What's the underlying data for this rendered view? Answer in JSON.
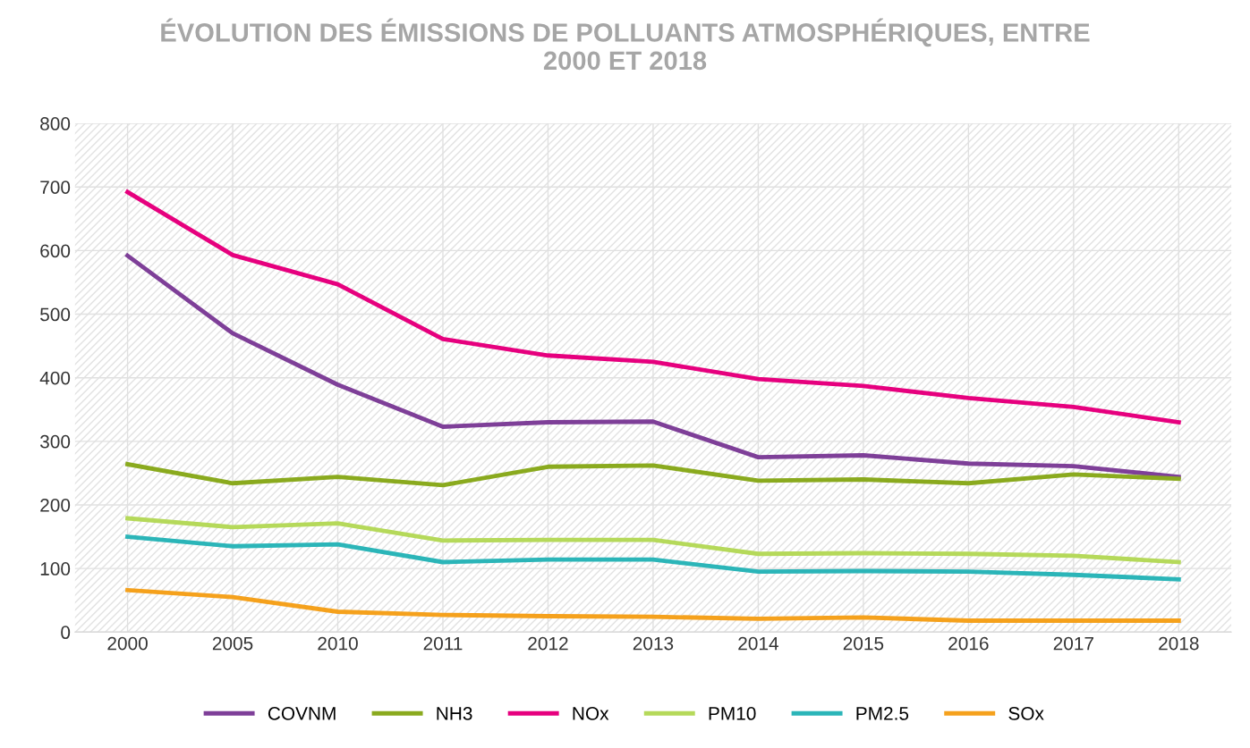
{
  "chart_data": {
    "type": "line",
    "title": "ÉVOLUTION DES ÉMISSIONS DE POLLUANTS ATMOSPHÉRIQUES, ENTRE\n2000 ET 2018",
    "categories": [
      "2000",
      "2005",
      "2010",
      "2011",
      "2012",
      "2013",
      "2014",
      "2015",
      "2016",
      "2017",
      "2018"
    ],
    "series": [
      {
        "name": "COVNM",
        "color": "#7e3f98",
        "values": [
          592,
          470,
          389,
          323,
          330,
          331,
          275,
          278,
          265,
          261,
          244
        ]
      },
      {
        "name": "NH3",
        "color": "#8aaa1e",
        "values": [
          264,
          234,
          244,
          231,
          260,
          262,
          238,
          240,
          234,
          248,
          241
        ]
      },
      {
        "name": "NOx",
        "color": "#e6007e",
        "values": [
          692,
          593,
          547,
          461,
          435,
          425,
          398,
          387,
          368,
          354,
          330
        ]
      },
      {
        "name": "PM10",
        "color": "#b5d95a",
        "values": [
          179,
          165,
          171,
          144,
          145,
          145,
          123,
          124,
          123,
          120,
          110
        ]
      },
      {
        "name": "PM2.5",
        "color": "#2bb5b8",
        "values": [
          150,
          135,
          138,
          110,
          114,
          114,
          95,
          96,
          95,
          90,
          83
        ]
      },
      {
        "name": "SOx",
        "color": "#f5a11c",
        "values": [
          66,
          55,
          32,
          27,
          25,
          24,
          21,
          23,
          18,
          18,
          18
        ]
      }
    ],
    "ylim": [
      0,
      800
    ],
    "yticks": [
      0,
      100,
      200,
      300,
      400,
      500,
      600,
      700,
      800
    ],
    "grid": true,
    "legend": "bottom",
    "marker": "none",
    "line_style": "solid"
  }
}
